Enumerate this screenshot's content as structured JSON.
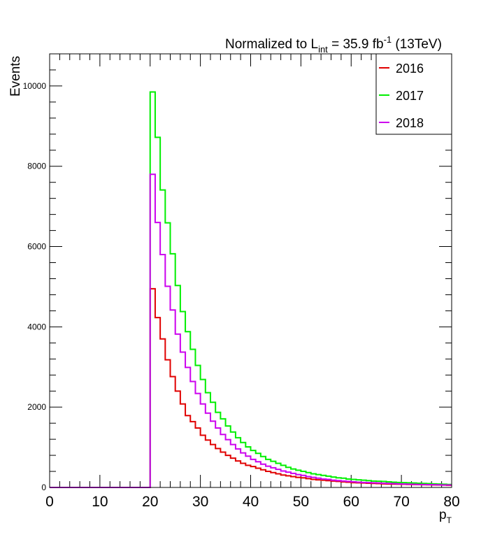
{
  "chart_data": {
    "type": "histogram-step",
    "title": {
      "prefix": "Normalized to L",
      "subscript": "int",
      "middle": " = 35.9 fb",
      "superscript": "-1",
      "suffix": " (13TeV)"
    },
    "xlabel": {
      "main": "p",
      "sub": "T"
    },
    "ylabel": "Events",
    "xlim": [
      0,
      80
    ],
    "ylim": [
      0,
      10800
    ],
    "x_ticks": [
      "0",
      "10",
      "20",
      "30",
      "40",
      "50",
      "60",
      "70",
      "80"
    ],
    "y_ticks": [
      "0",
      "2000",
      "4000",
      "6000",
      "8000",
      "10000"
    ],
    "bin_width": 1,
    "legend": [
      "2016",
      "2017",
      "2018"
    ],
    "series": [
      {
        "name": "2016",
        "color": "#e00000",
        "values": [
          0,
          0,
          0,
          0,
          0,
          0,
          0,
          0,
          0,
          0,
          0,
          0,
          0,
          0,
          0,
          0,
          0,
          0,
          0,
          0,
          4950,
          4230,
          3700,
          3180,
          2760,
          2400,
          2080,
          1790,
          1640,
          1480,
          1300,
          1180,
          1070,
          970,
          880,
          800,
          730,
          660,
          600,
          550,
          520,
          480,
          440,
          400,
          370,
          340,
          310,
          290,
          270,
          250,
          240,
          220,
          200,
          190,
          180,
          170,
          160,
          150,
          140,
          130,
          120,
          115,
          110,
          105,
          100,
          95,
          90,
          85,
          82,
          80,
          78,
          75,
          72,
          70,
          68,
          65,
          63,
          60,
          58,
          55
        ]
      },
      {
        "name": "2017",
        "color": "#00ee00",
        "values": [
          0,
          0,
          0,
          0,
          0,
          0,
          0,
          0,
          0,
          0,
          0,
          0,
          0,
          0,
          0,
          0,
          0,
          0,
          0,
          0,
          9850,
          8720,
          7410,
          6590,
          5820,
          5030,
          4380,
          3880,
          3440,
          3040,
          2690,
          2360,
          2120,
          1870,
          1710,
          1530,
          1380,
          1240,
          1120,
          1010,
          920,
          850,
          770,
          700,
          650,
          600,
          550,
          500,
          460,
          430,
          400,
          370,
          340,
          320,
          300,
          280,
          260,
          240,
          230,
          210,
          200,
          190,
          180,
          170,
          160,
          155,
          150,
          140,
          130,
          125,
          120,
          115,
          110,
          105,
          100,
          95,
          90,
          85,
          80,
          75
        ]
      },
      {
        "name": "2018",
        "color": "#cc00ee",
        "values": [
          0,
          0,
          0,
          0,
          0,
          0,
          0,
          0,
          0,
          0,
          0,
          0,
          0,
          0,
          0,
          0,
          0,
          0,
          0,
          0,
          7800,
          6600,
          5800,
          5010,
          4420,
          3820,
          3370,
          2990,
          2640,
          2340,
          2080,
          1850,
          1650,
          1480,
          1320,
          1190,
          1070,
          960,
          860,
          780,
          700,
          640,
          580,
          530,
          490,
          450,
          410,
          380,
          350,
          320,
          300,
          270,
          250,
          230,
          210,
          200,
          180,
          170,
          160,
          150,
          140,
          130,
          125,
          120,
          115,
          110,
          105,
          100,
          95,
          90,
          85,
          80,
          78,
          75,
          72,
          70,
          68,
          65,
          62,
          60
        ]
      }
    ]
  }
}
